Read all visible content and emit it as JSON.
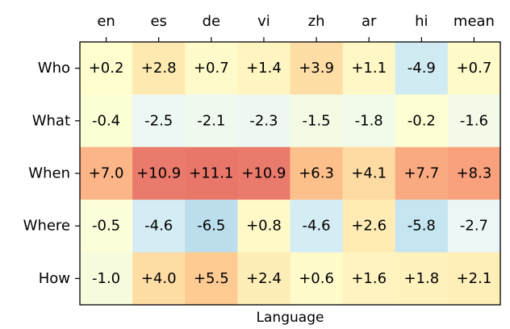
{
  "chart_data": {
    "type": "heatmap",
    "columns": [
      "en",
      "es",
      "de",
      "vi",
      "zh",
      "ar",
      "hi",
      "mean"
    ],
    "rows": [
      "Who",
      "What",
      "When",
      "Where",
      "How"
    ],
    "values": [
      [
        0.2,
        2.8,
        0.7,
        1.4,
        3.9,
        1.1,
        -4.9,
        0.7
      ],
      [
        -0.4,
        -2.5,
        -2.1,
        -2.3,
        -1.5,
        -1.8,
        -0.2,
        -1.6
      ],
      [
        7.0,
        10.9,
        11.1,
        10.9,
        6.3,
        4.1,
        7.7,
        8.3
      ],
      [
        -0.5,
        -4.6,
        -6.5,
        0.8,
        -4.6,
        2.6,
        -5.8,
        -2.7
      ],
      [
        -1.0,
        4.0,
        5.5,
        2.4,
        0.6,
        1.6,
        1.8,
        2.1
      ]
    ],
    "labels": [
      [
        "+0.2",
        "+2.8",
        "+0.7",
        "+1.4",
        "+3.9",
        "+1.1",
        "-4.9",
        "+0.7"
      ],
      [
        "-0.4",
        "-2.5",
        "-2.1",
        "-2.3",
        "-1.5",
        "-1.8",
        "-0.2",
        "-1.6"
      ],
      [
        "+7.0",
        "+10.9",
        "+11.1",
        "+10.9",
        "+6.3",
        "+4.1",
        "+7.7",
        "+8.3"
      ],
      [
        "-0.5",
        "-4.6",
        "-6.5",
        "+0.8",
        "-4.6",
        "+2.6",
        "-5.8",
        "-2.7"
      ],
      [
        "-1.0",
        "+4.0",
        "+5.5",
        "+2.4",
        "+0.6",
        "+1.6",
        "+1.8",
        "+2.1"
      ]
    ],
    "xlabel": "Language",
    "xlabel_position": "bottom",
    "column_labels_position": "top",
    "colormap": "diverging blue-yellow-orange (RdYlBu reversed)",
    "color_range": [
      -15,
      15
    ],
    "grid": false,
    "colorbar": false
  }
}
